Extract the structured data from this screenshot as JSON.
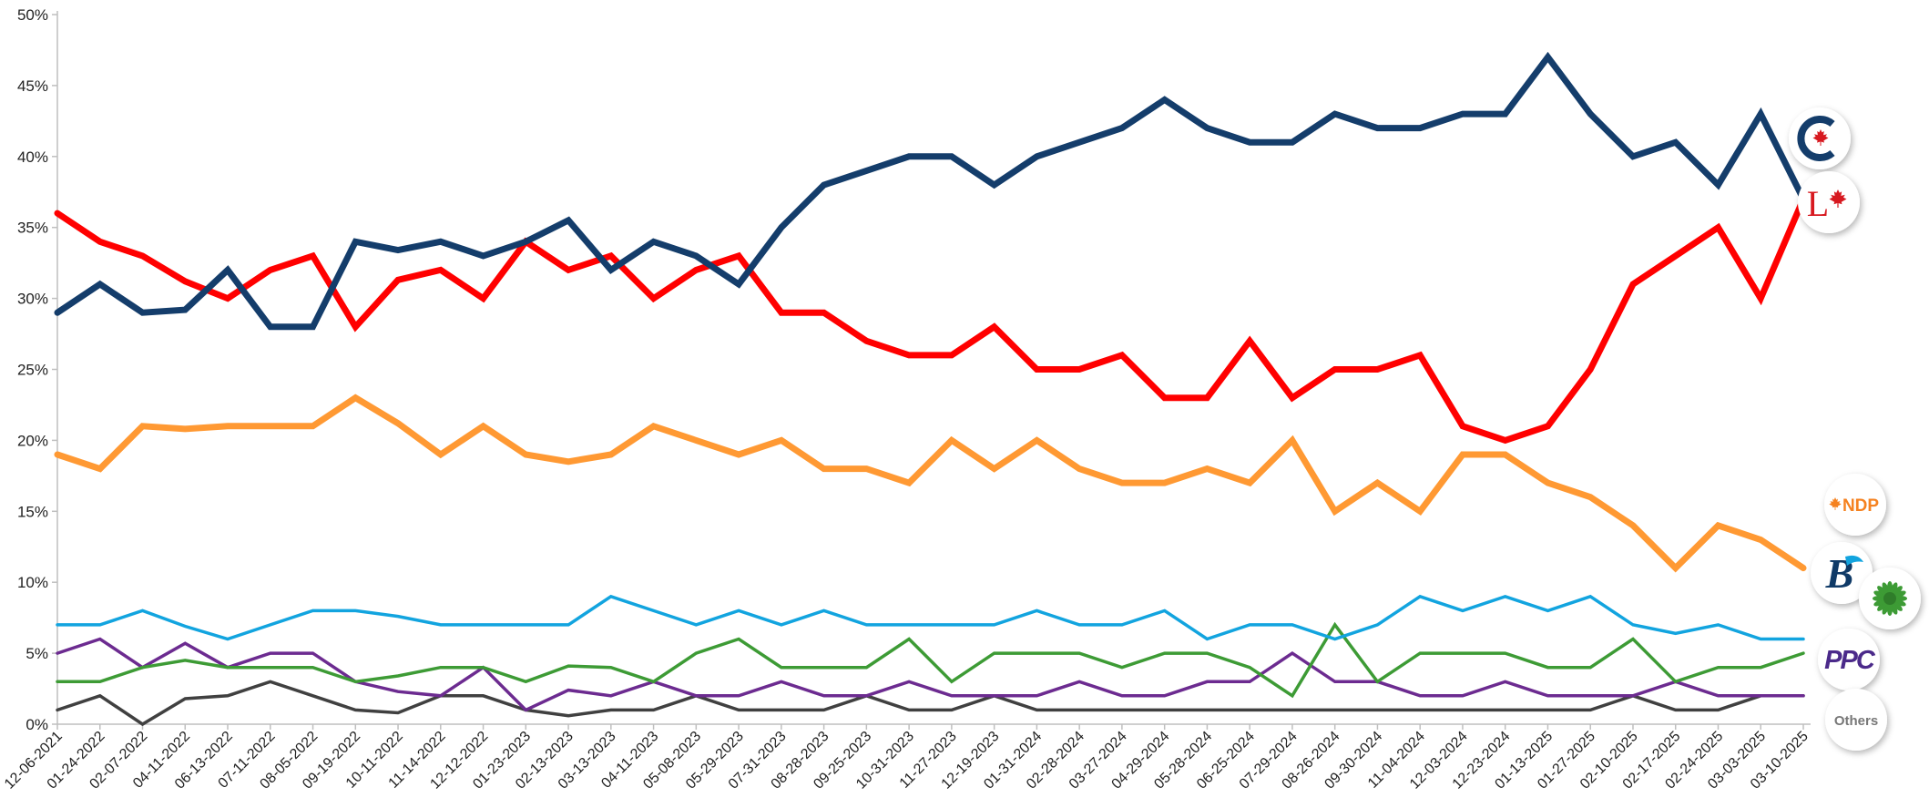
{
  "chart_data": {
    "type": "line",
    "title": "",
    "xlabel": "",
    "ylabel": "",
    "ylim": [
      0,
      50
    ],
    "y_ticks": [
      "0%",
      "5%",
      "10%",
      "15%",
      "20%",
      "25%",
      "30%",
      "35%",
      "40%",
      "45%",
      "50%"
    ],
    "grid": false,
    "x": [
      "12-06-2021",
      "01-24-2022",
      "02-07-2022",
      "04-11-2022",
      "06-13-2022",
      "07-11-2022",
      "08-05-2022",
      "09-19-2022",
      "10-11-2022",
      "11-14-2022",
      "12-12-2022",
      "01-23-2023",
      "02-13-2023",
      "03-13-2023",
      "04-11-2023",
      "05-08-2023",
      "05-29-2023",
      "07-31-2023",
      "08-28-2023",
      "09-25-2023",
      "10-31-2023",
      "11-27-2023",
      "12-19-2023",
      "01-31-2024",
      "02-28-2024",
      "03-27-2024",
      "04-29-2024",
      "05-28-2024",
      "06-25-2024",
      "07-29-2024",
      "08-26-2024",
      "09-30-2024",
      "11-04-2024",
      "12-03-2024",
      "12-23-2024",
      "01-13-2025",
      "01-27-2025",
      "02-10-2025",
      "02-17-2025",
      "02-24-2025",
      "03-03-2025",
      "03-10-2025"
    ],
    "series": [
      {
        "key": "cpc",
        "color": "#143d6b",
        "width": 7,
        "values": [
          29,
          31,
          29,
          29.2,
          32,
          28,
          28,
          34,
          33.4,
          34,
          33,
          34,
          35.5,
          32,
          34,
          33,
          31,
          35,
          38,
          39,
          40,
          40,
          38,
          40,
          41,
          42,
          44,
          42,
          41,
          41,
          43,
          42,
          42,
          43,
          43,
          47,
          43,
          40,
          41,
          38,
          43,
          37
        ]
      },
      {
        "key": "lpc",
        "color": "#ff0000",
        "width": 7,
        "values": [
          36,
          34,
          33,
          31.2,
          30,
          32,
          33,
          28,
          31.3,
          32,
          30,
          34,
          32,
          33,
          30,
          32,
          33,
          29,
          29,
          27,
          26,
          26,
          28,
          25,
          25,
          26,
          23,
          23,
          27,
          23,
          25,
          25,
          26,
          21,
          20,
          21,
          25,
          31,
          33,
          35,
          30,
          37
        ]
      },
      {
        "key": "ndp",
        "color": "#ff9933",
        "width": 7,
        "values": [
          19,
          18,
          21,
          20.8,
          21,
          21,
          21,
          23,
          21.2,
          19,
          21,
          19,
          18.5,
          19,
          21,
          20,
          19,
          20,
          18,
          18,
          17,
          20,
          18,
          20,
          18,
          17,
          17,
          18,
          17,
          20,
          15,
          17,
          15,
          19,
          19,
          17,
          16,
          14,
          11,
          14,
          13,
          11
        ]
      },
      {
        "key": "bq",
        "color": "#12a4df",
        "width": 3.5,
        "values": [
          7,
          7,
          8,
          6.9,
          6,
          7,
          8,
          8,
          7.6,
          7,
          7,
          7,
          7,
          9,
          8,
          7,
          8,
          7,
          8,
          7,
          7,
          7,
          7,
          8,
          7,
          7,
          8,
          6,
          7,
          7,
          6,
          7,
          9,
          8,
          9,
          8,
          9,
          7,
          6.4,
          7,
          6,
          6
        ]
      },
      {
        "key": "gpc",
        "color": "#3d9b35",
        "width": 3.5,
        "values": [
          3,
          3,
          4,
          4.5,
          4,
          4,
          4,
          3,
          3.4,
          4,
          4,
          3,
          4.1,
          4,
          3,
          5,
          6,
          4,
          4,
          4,
          6,
          3,
          5,
          5,
          5,
          4,
          5,
          5,
          4,
          2,
          7,
          3,
          5,
          5,
          5,
          4,
          4,
          6,
          3,
          4,
          4,
          5
        ]
      },
      {
        "key": "ppc",
        "color": "#6c2b90",
        "width": 3.5,
        "values": [
          5,
          6,
          4,
          5.7,
          4,
          5,
          5,
          3,
          2.3,
          2,
          4,
          1,
          2.4,
          2,
          3,
          2,
          2,
          3,
          2,
          2,
          3,
          2,
          2,
          2,
          3,
          2,
          2,
          3,
          3,
          5,
          3,
          3,
          2,
          2,
          3,
          2,
          2,
          2,
          3,
          2,
          2,
          2
        ]
      },
      {
        "key": "others",
        "color": "#404040",
        "width": 3.5,
        "values": [
          1,
          2,
          0,
          1.8,
          2,
          3,
          2,
          1,
          0.8,
          2,
          2,
          1,
          0.6,
          1,
          1,
          2,
          1,
          1,
          1,
          2,
          1,
          1,
          2,
          1,
          1,
          1,
          1,
          1,
          1,
          1,
          1,
          1,
          1,
          1,
          1,
          1,
          1,
          2,
          1,
          1,
          2,
          2
        ]
      }
    ]
  },
  "legend": {
    "badges": [
      {
        "key": "cpc",
        "icon": "conservative-logo-icon",
        "color": "#143d6b"
      },
      {
        "key": "lpc",
        "icon": "liberal-logo-icon",
        "color": "#d71920",
        "text": "L"
      },
      {
        "key": "ndp",
        "icon": "ndp-logo-icon",
        "color": "#f58220",
        "text": "NDP"
      },
      {
        "key": "bq",
        "icon": "bloc-logo-icon",
        "color": "#0f3a67",
        "text": "B"
      },
      {
        "key": "gpc",
        "icon": "green-logo-icon",
        "color": "#3d9b35"
      },
      {
        "key": "ppc",
        "icon": "ppc-logo-icon",
        "color": "#4b2a8a",
        "text": "PPC"
      },
      {
        "key": "others",
        "icon": "others-label",
        "color": "#777777",
        "text": "Others"
      }
    ]
  }
}
